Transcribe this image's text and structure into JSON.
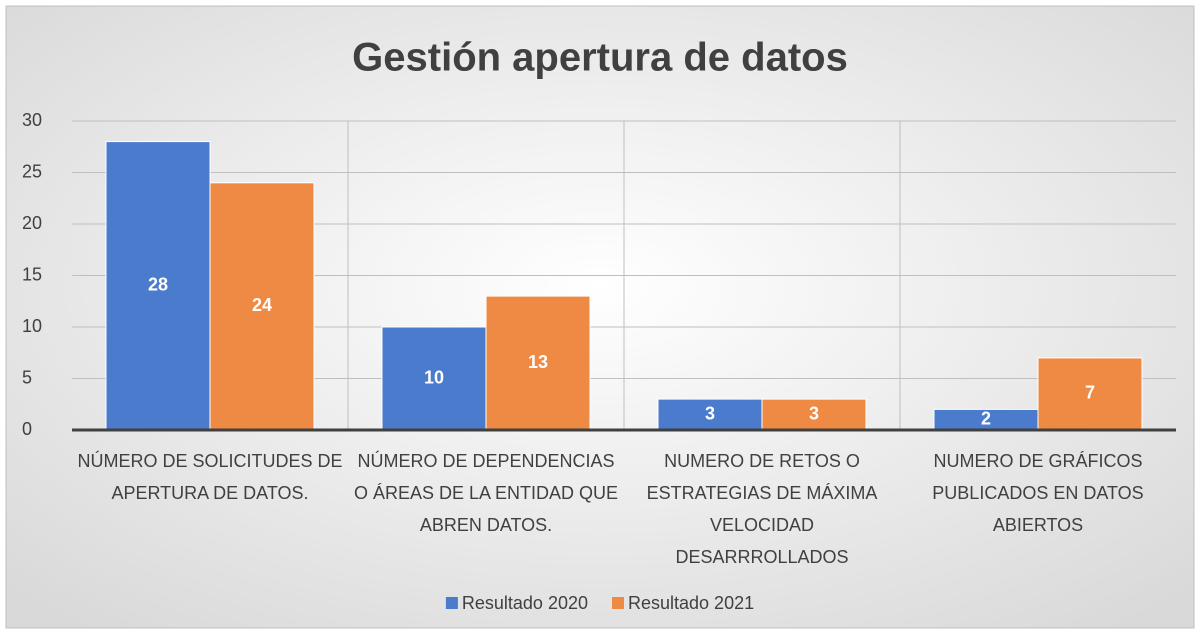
{
  "chart_data": {
    "type": "bar",
    "title": "Gestión apertura de datos",
    "categories": [
      "NÚMERO DE SOLICITUDES DE APERTURA DE DATOS.",
      "NÚMERO DE DEPENDENCIAS O ÁREAS DE LA ENTIDAD QUE ABREN DATOS.",
      "NUMERO DE RETOS O ESTRATEGIAS DE MÁXIMA VELOCIDAD DESARRROLLADOS",
      "NUMERO DE GRÁFICOS PUBLICADOS EN DATOS ABIERTOS"
    ],
    "series": [
      {
        "name": "Resultado 2020",
        "color": "#4a7bcc",
        "values": [
          28,
          10,
          3,
          2
        ]
      },
      {
        "name": "Resultado 2021",
        "color": "#ef8a45",
        "values": [
          24,
          13,
          3,
          7
        ]
      }
    ],
    "ylim": [
      0,
      30
    ],
    "yticks": [
      0,
      5,
      10,
      15,
      20,
      25,
      30
    ],
    "grid": true,
    "legend": "bottom"
  }
}
